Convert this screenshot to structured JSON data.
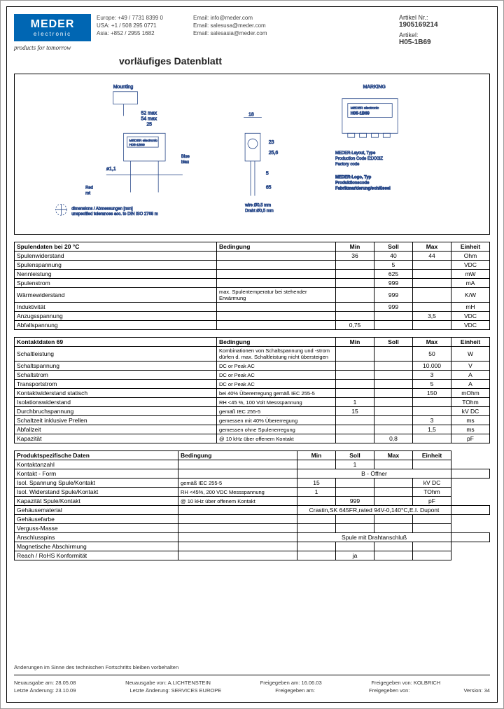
{
  "logo": {
    "top": "MEDER",
    "bottom": "electronic",
    "tagline": "products for tomorrow"
  },
  "contact": {
    "rows": [
      {
        "region": "Europe: +49 / 7731 8399 0",
        "email": "Email: info@meder.com"
      },
      {
        "region": "USA: +1 / 508 295 0771",
        "email": "Email: salesusa@meder.com"
      },
      {
        "region": "Asia: +852 / 2955 1682",
        "email": "Email: salesasia@meder.com"
      }
    ]
  },
  "artikel": {
    "nr_label": "Artikel Nr.:",
    "nr_value": "1905169214",
    "art_label": "Artikel:",
    "art_value": "H05-1B69"
  },
  "title": "vorläufiges Datenblatt",
  "diagram": {
    "marking": "MARKING",
    "part": "H05-1B69",
    "brand": "MEDER electronic",
    "note1": "MEDER-Layout, Type\nProduction Code E1XX3Z\nFactory code",
    "note2": "MEDER-Logo, Typ\nProduktionscode\nFabrikmarkierung/schlüssel",
    "dim_note": "dimensions / Abmessungen [mm]\nunspecified tolerances acc. to DIN ISO 2768 m",
    "mounting": "Mounting",
    "dims": {
      "w52": "52 max",
      "w54": "54 max",
      "d25": "25",
      "d18": "18",
      "d23": "23",
      "d256": "25,6",
      "d5": "5",
      "d65": "65",
      "hole": "ø1,1"
    },
    "wire": "wire Ø0,5 mm\nDraht Ø0,5 mm",
    "colors": {
      "red": "Red\nrot",
      "blue": "Blue\nblau"
    }
  },
  "tables": {
    "spulen": {
      "header": [
        "Spulendaten bei 20 °C",
        "Bedingung",
        "Min",
        "Soll",
        "Max",
        "Einheit"
      ],
      "rows": [
        [
          "Spulenwiderstand",
          "",
          "36",
          "40",
          "44",
          "Ohm"
        ],
        [
          "Spulenspannung",
          "",
          "",
          "5",
          "",
          "VDC"
        ],
        [
          "Nennleistung",
          "",
          "",
          "625",
          "",
          "mW"
        ],
        [
          "Spulenstrom",
          "",
          "",
          "999",
          "",
          "mA"
        ],
        [
          "Wärmewiderstand",
          "max. Spulentemperatur bei stehender Erwärmung",
          "",
          "999",
          "",
          "K/W"
        ],
        [
          "Induktivität",
          "",
          "",
          "999",
          "",
          "mH"
        ],
        [
          "Anzugsspannung",
          "",
          "",
          "",
          "3,5",
          "VDC"
        ],
        [
          "Abfallspannung",
          "",
          "0,75",
          "",
          "",
          "VDC"
        ]
      ]
    },
    "kontakt": {
      "header": [
        "Kontaktdaten 69",
        "Bedingung",
        "Min",
        "Soll",
        "Max",
        "Einheit"
      ],
      "rows": [
        [
          "Schaltleistung",
          "Kombinationen von Schaltspannung und -strom dürfen d. max. Schaltleistung nicht übersteigen",
          "",
          "",
          "50",
          "W"
        ],
        [
          "Schaltspannung",
          "DC or Peak AC",
          "",
          "",
          "10.000",
          "V"
        ],
        [
          "Schaltstrom",
          "DC or Peak AC",
          "",
          "",
          "3",
          "A"
        ],
        [
          "Transportstrom",
          "DC or Peak AC",
          "",
          "",
          "5",
          "A"
        ],
        [
          "Kontaktwiderstand statisch",
          "bei 40% Übererregung gemäß IEC 255-5",
          "",
          "",
          "150",
          "mOhm"
        ],
        [
          "Isolationswiderstand",
          "RH <45 %, 100 Volt Messspannung",
          "1",
          "",
          "",
          "TOhm"
        ],
        [
          "Durchbruchspannung",
          "gemäß IEC 255-5",
          "15",
          "",
          "",
          "kV DC"
        ],
        [
          "Schaltzeit inklusive Prellen",
          "gemessen mit 40% Übererregung",
          "",
          "",
          "3",
          "ms"
        ],
        [
          "Abfallzeit",
          "gemessen ohne Spulenerregung",
          "",
          "",
          "1,5",
          "ms"
        ],
        [
          "Kapazität",
          "@ 10 kHz über offenem Kontakt",
          "",
          "0,8",
          "",
          "pF"
        ]
      ]
    },
    "produkt": {
      "header": [
        "Produktspezifische Daten",
        "Bedingung",
        "Min",
        "Soll",
        "Max",
        "Einheit"
      ],
      "rows": [
        [
          "Kontaktanzahl",
          "",
          "",
          "1",
          "",
          ""
        ],
        [
          "Kontakt - Form",
          "",
          {
            "span": "B - Öffner"
          },
          "",
          "",
          ""
        ],
        [
          "Isol. Spannung Spule/Kontakt",
          "gemäß IEC 255-5",
          "15",
          "",
          "",
          "kV DC"
        ],
        [
          "Isol. Widerstand Spule/Kontakt",
          "RH <45%, 200 VDC Messspannung",
          "1",
          "",
          "",
          "TOhm"
        ],
        [
          "Kapazität Spule/Kontakt",
          "@ 10 kHz über offenem Kontakt",
          "",
          "999",
          "",
          "pF"
        ],
        [
          "Gehäusematerial",
          "",
          {
            "span": "Crastin,SK 645FR,rated 94V-0,140°C,E.I. Dupont"
          },
          "",
          "",
          ""
        ],
        [
          "Gehäusefarbe",
          "",
          "",
          "",
          "",
          ""
        ],
        [
          "Verguss-Masse",
          "",
          "",
          "",
          "",
          ""
        ],
        [
          "Anschlusspins",
          "",
          {
            "span": "Spule mit Drahtanschluß"
          },
          "",
          "",
          ""
        ],
        [
          "Magnetische Abschirmung",
          "",
          "",
          "",
          "",
          ""
        ],
        [
          "Reach / RoHS Konformität",
          "",
          "",
          "ja",
          "",
          ""
        ]
      ]
    }
  },
  "footer": {
    "disclaimer": "Änderungen im Sinne des technischen Fortschritts bleiben vorbehalten",
    "row1": {
      "a": "Neuausgabe am: 28.05.08",
      "b": "Neuausgabe von: A.LICHTENSTEIN",
      "c": "Freigegeben am: 16.06.03",
      "d": "Freigegeben von: KOLBRICH"
    },
    "row2": {
      "a": "Letzte Änderung: 23.10.09",
      "b": "Letzte Änderung: SERVICES EUROPE",
      "c": "Freigegeben am:",
      "d": "Freigegeben von:",
      "v": "Version: 34"
    }
  }
}
